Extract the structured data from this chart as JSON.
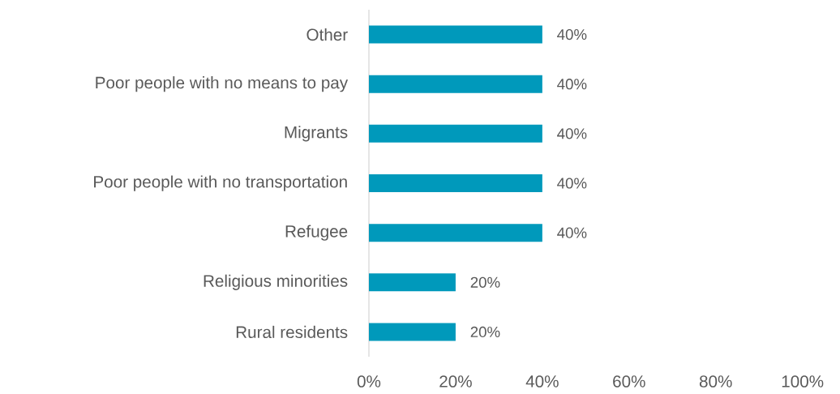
{
  "chart_data": {
    "type": "bar",
    "orientation": "horizontal",
    "categories": [
      "Other",
      "Poor people with no means to pay",
      "Migrants",
      "Poor people with no transportation",
      "Refugee",
      "Religious minorities",
      "Rural residents"
    ],
    "values": [
      40,
      40,
      40,
      40,
      40,
      20,
      20
    ],
    "value_labels": [
      "40%",
      "40%",
      "40%",
      "40%",
      "40%",
      "20%",
      "20%"
    ],
    "color": "#0099bb",
    "xlim": [
      0,
      100
    ],
    "xticks": [
      {
        "value": 0,
        "label": "0%"
      },
      {
        "value": 20,
        "label": "20%"
      },
      {
        "value": 40,
        "label": "40%"
      },
      {
        "value": 60,
        "label": "60%"
      },
      {
        "value": 80,
        "label": "80%"
      },
      {
        "value": 100,
        "label": "100%"
      }
    ]
  }
}
